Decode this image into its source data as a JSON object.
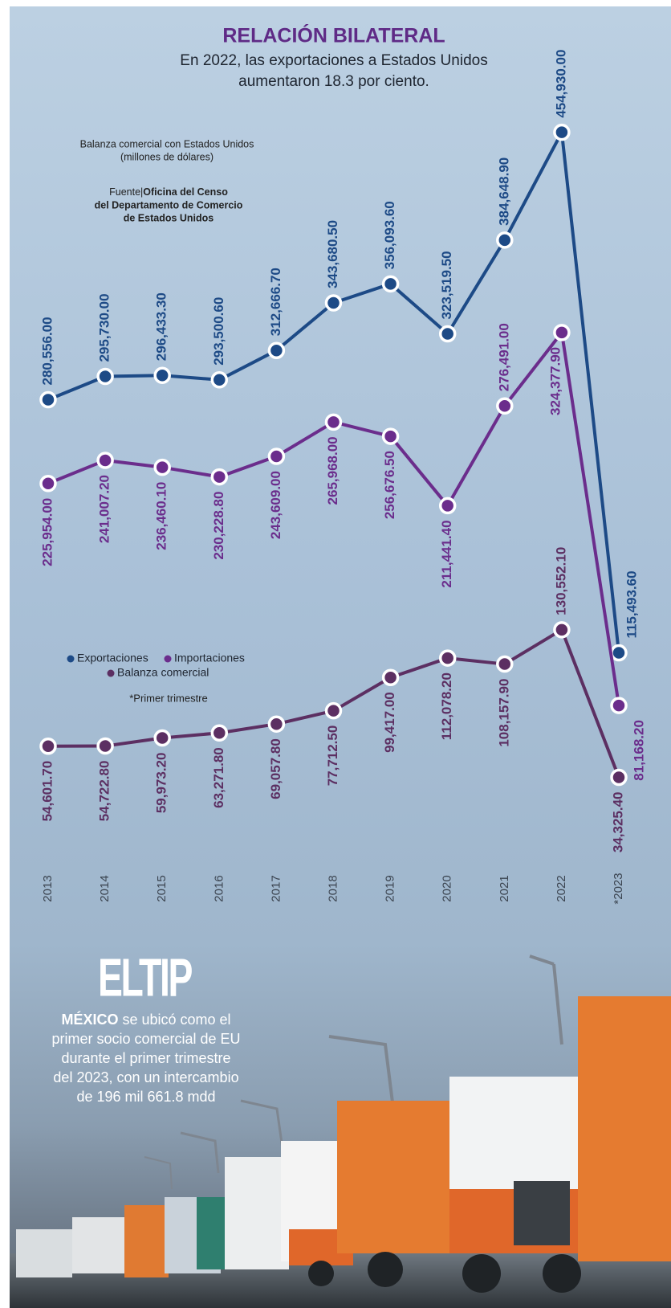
{
  "chart_data": {
    "type": "line",
    "title": "RELACIÓN BILATERAL",
    "subtitle": [
      "En 2022, las exportaciones a Estados Unidos",
      "aumentaron 18.3 por ciento."
    ],
    "axis_note": [
      "Balanza comercial con Estados Unidos",
      "(millones de dólares)"
    ],
    "source": {
      "label": "Fuente|",
      "lines": [
        "Oficina del Censo",
        "del Departamento de Comercio",
        "de Estados Unidos"
      ]
    },
    "footnote": "*Primer trimestre",
    "categories": [
      "2013",
      "2014",
      "2015",
      "2016",
      "2017",
      "2018",
      "2019",
      "2020",
      "2021",
      "2022",
      "*2023"
    ],
    "ylim": [
      0,
      460000
    ],
    "series": [
      {
        "name": "Exportaciones",
        "color": "#1d4a86",
        "values": [
          280556.0,
          295730.0,
          296433.3,
          293500.6,
          312666.7,
          343680.5,
          356093.6,
          323519.5,
          384648.9,
          454930.0,
          115493.6
        ],
        "value_labels": [
          "280,556.00",
          "295,730.00",
          "296,433.30",
          "293,500.60",
          "312,666.70",
          "343,680.50",
          "356,093.60",
          "323,519.50",
          "384,648.90",
          "454,930.00",
          "115,493.60"
        ]
      },
      {
        "name": "Importaciones",
        "color": "#6b2d8c",
        "values": [
          225954.0,
          241007.2,
          236460.1,
          230228.8,
          243609.0,
          265968.0,
          256676.5,
          211441.4,
          276491.0,
          324377.9,
          81168.2
        ],
        "value_labels": [
          "225,954.00",
          "241,007.20",
          "236,460.10",
          "230,228.80",
          "243,609.00",
          "265,968.00",
          "256,676.50",
          "211,441.40",
          "276,491.00",
          "324,377.90",
          "81,168.20"
        ]
      },
      {
        "name": "Balanza comercial",
        "color": "#5c2f62",
        "values": [
          54601.7,
          54722.8,
          59973.2,
          63271.8,
          69057.8,
          77712.5,
          99417.0,
          112078.2,
          108157.9,
          130552.1,
          34325.4
        ],
        "value_labels": [
          "54,601.70",
          "54,722.80",
          "59,973.20",
          "63,271.80",
          "69,057.80",
          "77,712.50",
          "99,417.00",
          "112,078.20",
          "108,157.90",
          "130,552.10",
          "34,325.40"
        ]
      }
    ]
  },
  "tip": {
    "heading": "ELTIP",
    "lead": "MÉXICO",
    "lines": [
      " se ubicó como el",
      "primer socio comercial de EU",
      "durante el primer trimestre",
      "del 2023, con un intercambio",
      "de 196 mil 661.8 mdd"
    ]
  }
}
